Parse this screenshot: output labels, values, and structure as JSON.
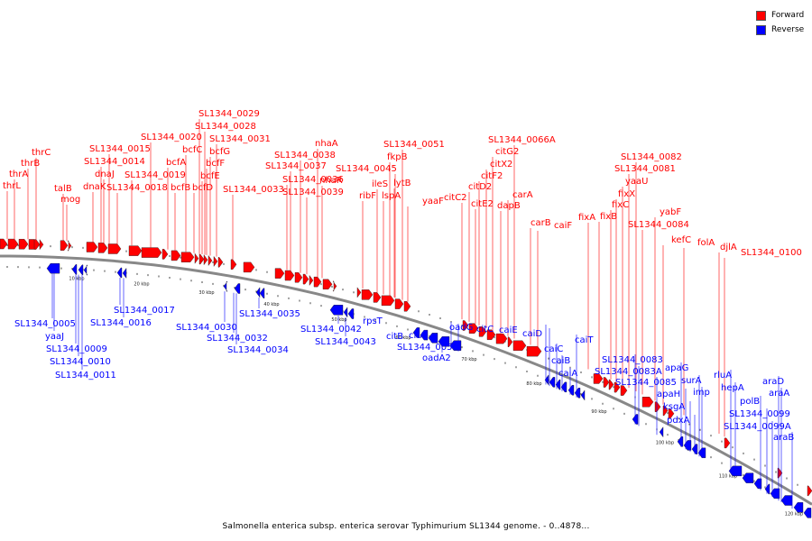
{
  "legend": {
    "forward_label": "Forward",
    "reverse_label": "Reverse",
    "forward_color": "#ff0000",
    "reverse_color": "#0000ff"
  },
  "caption": "Salmonella enterica subsp. enterica serovar Typhimurium SL1344 genome. - 0..4878...",
  "scale_ticks": [
    "10 kbp",
    "20 kbp",
    "30 kbp",
    "40 kbp",
    "50 kbp",
    "60 kbp",
    "70 kbp",
    "80 kbp",
    "90 kbp",
    "100 kbp",
    "110 kbp",
    "120 kbp"
  ],
  "forward_genes": [
    "thrL",
    "thrA",
    "thrB",
    "thrC",
    "talB",
    "mog",
    "dnaK",
    "dnaJ",
    "SL1344_0014",
    "SL1344_0015",
    "SL1344_0018",
    "SL1344_0019",
    "SL1344_0020",
    "bcfA",
    "bcfB",
    "bcfC",
    "bcfD",
    "bcfE",
    "bcfF",
    "bcfG",
    "SL1344_0028",
    "SL1344_0029",
    "SL1344_0031",
    "SL1344_0033",
    "SL1344_0036",
    "SL1344_0037",
    "SL1344_0038",
    "SL1344_0039",
    "nhaA",
    "nhaR",
    "ribF",
    "ileS",
    "lspA",
    "fkpB",
    "lytB",
    "SL1344_0045",
    "SL1344_0051",
    "yaaF",
    "citC2",
    "citD2",
    "citE2",
    "citF2",
    "citX2",
    "citG2",
    "dapB",
    "carA",
    "SL1344_0066A",
    "carB",
    "caiF",
    "fixA",
    "fixB",
    "fixC",
    "fixX",
    "yaaU",
    "SL1344_0081",
    "SL1344_0082",
    "SL1344_0084",
    "yabF",
    "kefC",
    "folA",
    "djlA",
    "SL1344_0100"
  ],
  "reverse_genes": [
    "SL1344_0005",
    "yaaJ",
    "SL1344_0009",
    "SL1344_0010",
    "SL1344_0011",
    "SL1344_0017",
    "SL1344_0016",
    "SL1344_0030",
    "SL1344_0032",
    "SL1344_0034",
    "SL1344_0035",
    "SL1344_0042",
    "SL1344_0043",
    "rpsT",
    "citB",
    "citA",
    "SL1344_0055",
    "oadA2",
    "oadG",
    "citC",
    "caiE",
    "caiD",
    "caiC",
    "caiB",
    "caiA",
    "caiT",
    "SL1344_0083",
    "SL1344_0083A",
    "SL1344_0085",
    "apaG",
    "apaH",
    "ksgA",
    "pdxA",
    "surA",
    "imp",
    "rluA",
    "hepA",
    "polB",
    "SL1344_0099",
    "SL1344_0099A",
    "araD",
    "araA",
    "araB"
  ]
}
